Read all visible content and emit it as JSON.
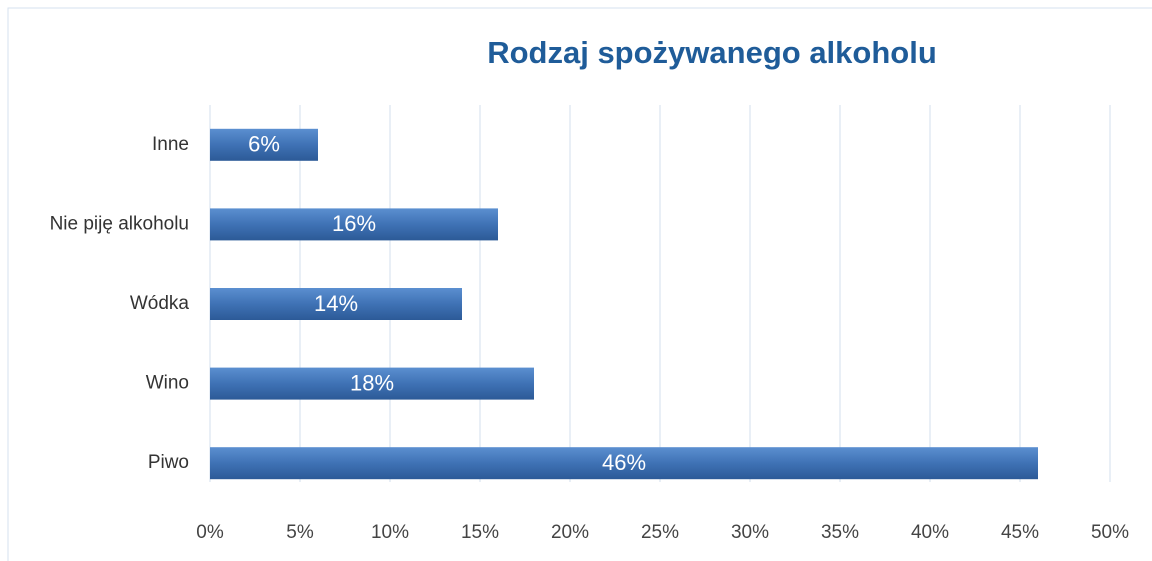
{
  "chart_data": {
    "type": "bar",
    "orientation": "horizontal",
    "title": "Rodzaj spożywanego alkoholu",
    "categories": [
      "Inne",
      "Nie piję alkoholu",
      "Wódka",
      "Wino",
      "Piwo"
    ],
    "values": [
      6,
      16,
      14,
      18,
      46
    ],
    "value_labels": [
      "6%",
      "16%",
      "14%",
      "18%",
      "46%"
    ],
    "color": "#3f72b5",
    "xlim": [
      0,
      50
    ],
    "xticks": [
      {
        "value": 0,
        "label": "0%"
      },
      {
        "value": 5,
        "label": "5%"
      },
      {
        "value": 10,
        "label": "10%"
      },
      {
        "value": 15,
        "label": "15%"
      },
      {
        "value": 20,
        "label": "20%"
      },
      {
        "value": 25,
        "label": "25%"
      },
      {
        "value": 30,
        "label": "30%"
      },
      {
        "value": 35,
        "label": "35%"
      },
      {
        "value": 40,
        "label": "40%"
      },
      {
        "value": 45,
        "label": "45%"
      },
      {
        "value": 50,
        "label": "50%"
      }
    ],
    "grid": true
  }
}
